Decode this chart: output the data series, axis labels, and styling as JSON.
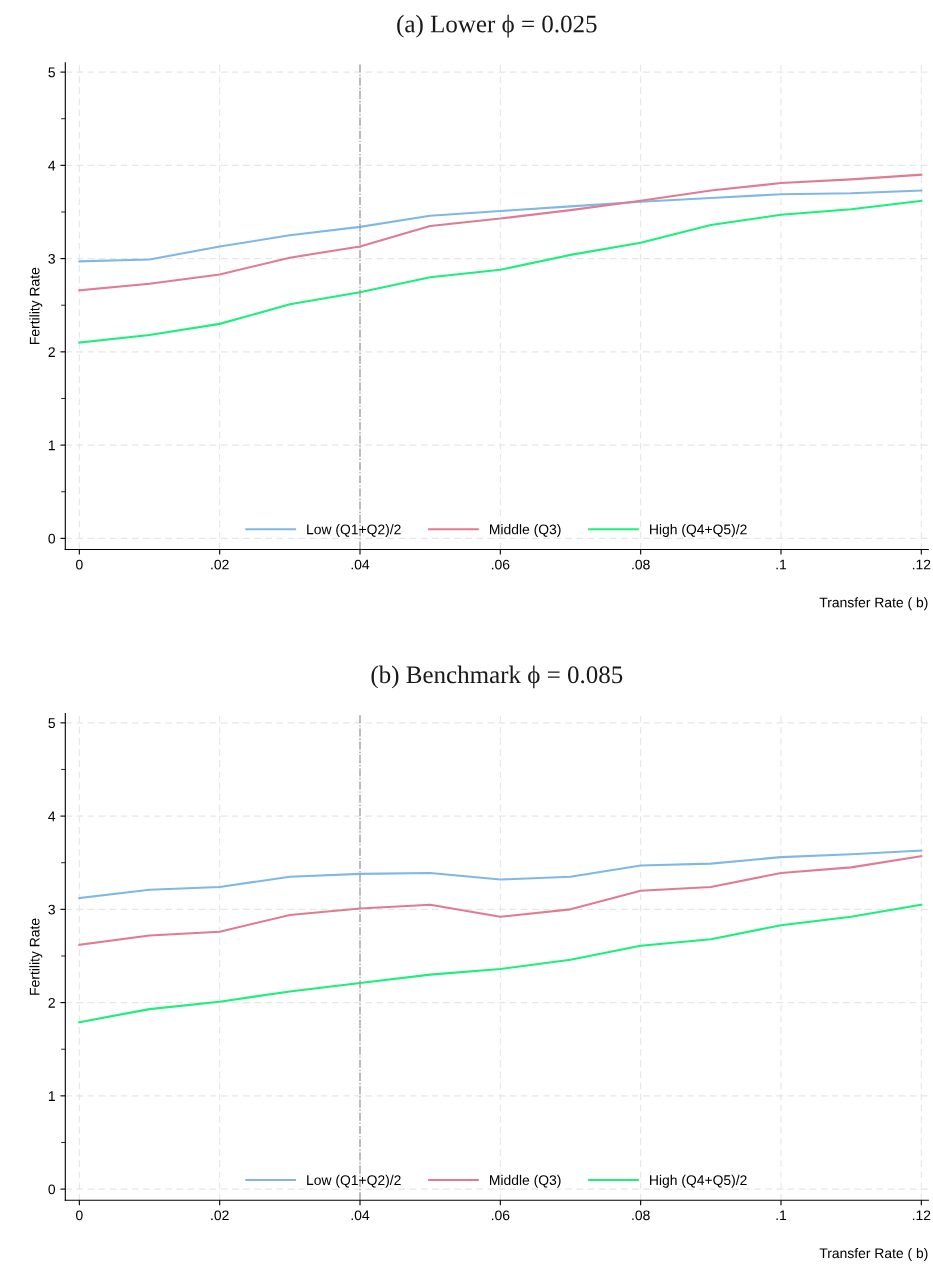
{
  "chart_data": [
    {
      "type": "line",
      "title": "(a) Lower ϕ = 0.025",
      "xlabel": "Transfer Rate ( b)",
      "ylabel": "Fertility Rate",
      "x": [
        0,
        0.01,
        0.02,
        0.03,
        0.04,
        0.05,
        0.06,
        0.07,
        0.08,
        0.09,
        0.1,
        0.11,
        0.12
      ],
      "series": [
        {
          "name": "Low (Q1+Q2)/2",
          "color": "#7fb8e6",
          "values": [
            2.97,
            2.99,
            3.13,
            3.25,
            3.34,
            3.46,
            3.51,
            3.56,
            3.61,
            3.65,
            3.69,
            3.7,
            3.73
          ]
        },
        {
          "name": "Middle (Q3)",
          "color": "#e07b91",
          "values": [
            2.66,
            2.73,
            2.83,
            3.01,
            3.13,
            3.35,
            3.43,
            3.52,
            3.62,
            3.73,
            3.81,
            3.85,
            3.9
          ]
        },
        {
          "name": "High (Q4+Q5)/2",
          "color": "#1af07a",
          "values": [
            2.1,
            2.18,
            2.3,
            2.51,
            2.64,
            2.8,
            2.88,
            3.04,
            3.17,
            3.36,
            3.47,
            3.53,
            3.62
          ]
        }
      ],
      "xlim": [
        -0.002,
        0.121
      ],
      "ylim": [
        -0.12,
        5.1
      ],
      "xticks": [
        0,
        {
          "value": 0.02,
          "label": ".02"
        },
        {
          "value": 0.04,
          "label": ".04"
        },
        {
          "value": 0.06,
          "label": ".06"
        },
        {
          "value": 0.08,
          "label": ".08"
        },
        {
          "value": 0.1,
          "label": ".1"
        },
        {
          "value": 0.12,
          "label": ".12"
        }
      ],
      "yticks": [
        0,
        {
          "value": 0.5,
          "label": null
        },
        1,
        {
          "value": 1.5,
          "label": null
        },
        2,
        {
          "value": 2.5,
          "label": null
        },
        3,
        {
          "value": 3.5,
          "label": null
        },
        4,
        {
          "value": 4.5,
          "label": null
        },
        5
      ],
      "ref_lines": [
        {
          "axis": "x",
          "value": 0.04,
          "color": "#999999",
          "line_style": "dashdot"
        }
      ],
      "grid": true,
      "legend": "bottom",
      "marker": "none",
      "line_style": "solid"
    },
    {
      "type": "line",
      "title": "(b) Benchmark ϕ = 0.085",
      "xlabel": "Transfer Rate ( b)",
      "ylabel": "Fertility Rate",
      "x": [
        0,
        0.01,
        0.02,
        0.03,
        0.04,
        0.05,
        0.06,
        0.07,
        0.08,
        0.09,
        0.1,
        0.11,
        0.12
      ],
      "series": [
        {
          "name": "Low (Q1+Q2)/2",
          "color": "#7fb8e6",
          "values": [
            3.12,
            3.21,
            3.24,
            3.35,
            3.38,
            3.39,
            3.32,
            3.35,
            3.47,
            3.49,
            3.56,
            3.59,
            3.63
          ]
        },
        {
          "name": "Middle (Q3)",
          "color": "#e07b91",
          "values": [
            2.62,
            2.72,
            2.76,
            2.94,
            3.01,
            3.05,
            2.92,
            3.0,
            3.2,
            3.24,
            3.39,
            3.45,
            3.57
          ]
        },
        {
          "name": "High (Q4+Q5)/2",
          "color": "#1af07a",
          "values": [
            1.79,
            1.93,
            2.01,
            2.12,
            2.21,
            2.3,
            2.36,
            2.46,
            2.61,
            2.68,
            2.83,
            2.92,
            3.05
          ]
        }
      ],
      "xlim": [
        -0.002,
        0.121
      ],
      "ylim": [
        -0.12,
        5.1
      ],
      "xticks": [
        0,
        {
          "value": 0.02,
          "label": ".02"
        },
        {
          "value": 0.04,
          "label": ".04"
        },
        {
          "value": 0.06,
          "label": ".06"
        },
        {
          "value": 0.08,
          "label": ".08"
        },
        {
          "value": 0.1,
          "label": ".1"
        },
        {
          "value": 0.12,
          "label": ".12"
        }
      ],
      "yticks": [
        0,
        {
          "value": 0.5,
          "label": null
        },
        1,
        {
          "value": 1.5,
          "label": null
        },
        2,
        {
          "value": 2.5,
          "label": null
        },
        3,
        {
          "value": 3.5,
          "label": null
        },
        4,
        {
          "value": 4.5,
          "label": null
        },
        5
      ],
      "ref_lines": [
        {
          "axis": "x",
          "value": 0.04,
          "color": "#999999",
          "line_style": "dashdot"
        }
      ],
      "grid": true,
      "legend": "bottom",
      "marker": "none",
      "line_style": "solid"
    }
  ]
}
